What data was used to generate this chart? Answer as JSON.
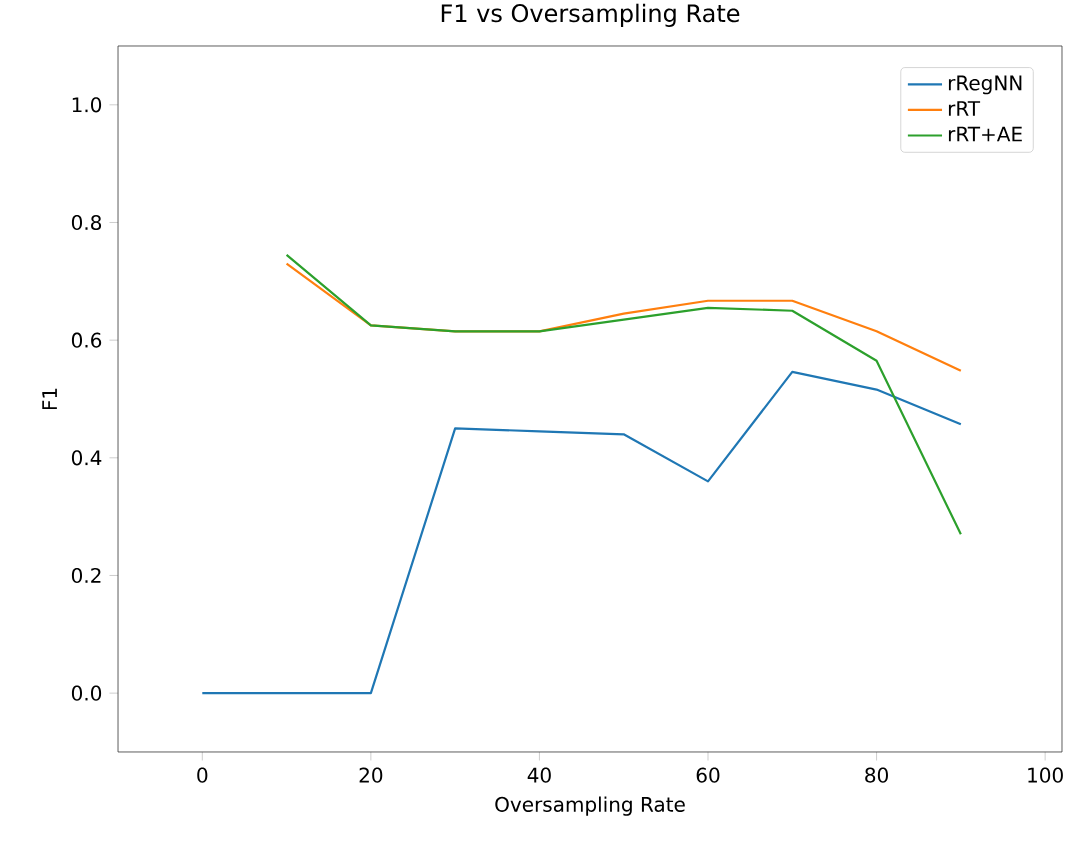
{
  "chart_data": {
    "type": "line",
    "title": "F1 vs Oversampling Rate",
    "xlabel": "Oversampling Rate",
    "ylabel": "F1",
    "xlim": [
      -10,
      102
    ],
    "xticks": [
      0,
      20,
      40,
      60,
      80,
      100
    ],
    "ylim": [
      -0.1,
      1.1
    ],
    "yticks": [
      {
        "value": 0,
        "label": "0.0"
      },
      0.2,
      0.4,
      0.6,
      0.8,
      {
        "value": 1,
        "label": "1.0"
      }
    ],
    "legend": "top right",
    "grid": false,
    "series": [
      {
        "name": "rRegNN",
        "color": "#1f77b4",
        "x": [
          0,
          10,
          20,
          30,
          40,
          50,
          60,
          70,
          80,
          90
        ],
        "values": [
          0.0,
          0.0,
          0.0,
          0.45,
          0.445,
          0.44,
          0.36,
          0.546,
          0.516,
          0.457
        ]
      },
      {
        "name": "rRT",
        "color": "#ff7f0e",
        "x": [
          10,
          20,
          30,
          40,
          50,
          60,
          70,
          80,
          90
        ],
        "values": [
          0.73,
          0.625,
          0.615,
          0.615,
          0.645,
          0.667,
          0.667,
          0.615,
          0.548
        ]
      },
      {
        "name": "rRT+AE",
        "color": "#2ca02c",
        "x": [
          10,
          20,
          30,
          40,
          50,
          60,
          70,
          80,
          90
        ],
        "values": [
          0.745,
          0.625,
          0.615,
          0.615,
          0.635,
          0.655,
          0.65,
          0.565,
          0.27
        ]
      }
    ]
  }
}
